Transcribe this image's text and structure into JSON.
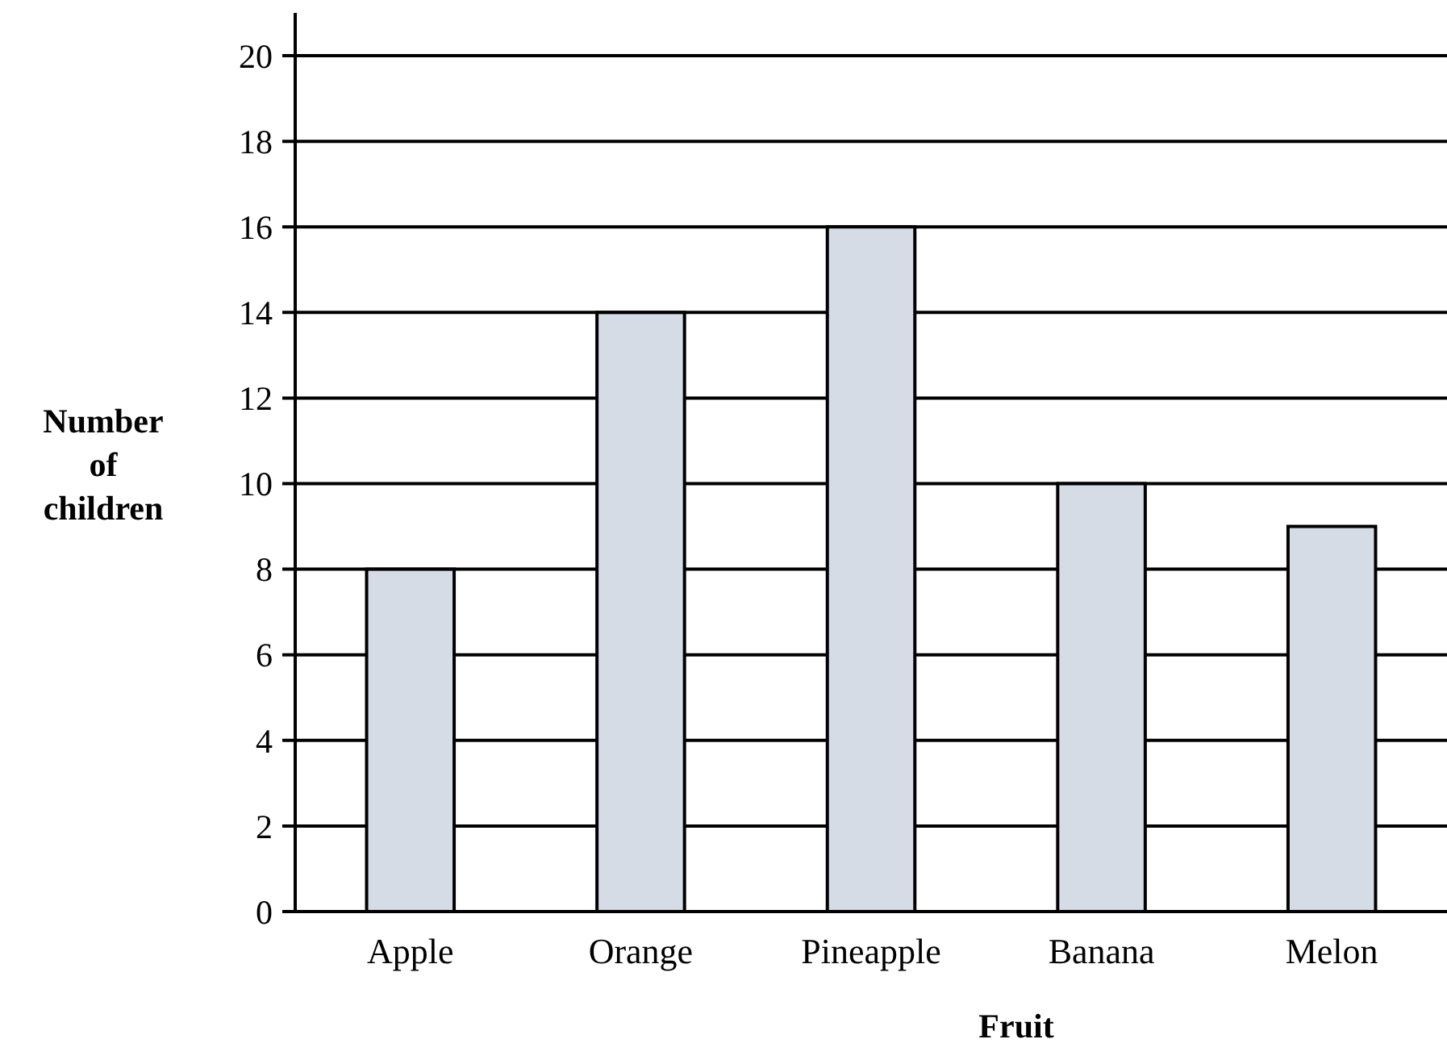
{
  "chart_data": {
    "type": "bar",
    "xlabel": "Fruit",
    "ylabel": "Number of children",
    "categories": [
      "Apple",
      "Orange",
      "Pineapple",
      "Banana",
      "Melon"
    ],
    "values": [
      8,
      14,
      16,
      10,
      9
    ],
    "color": "#d6dce5",
    "ylim": [
      0,
      21
    ],
    "yticks": [
      0,
      2,
      4,
      6,
      8,
      10,
      12,
      14,
      16,
      18,
      20
    ],
    "grid": "y"
  }
}
